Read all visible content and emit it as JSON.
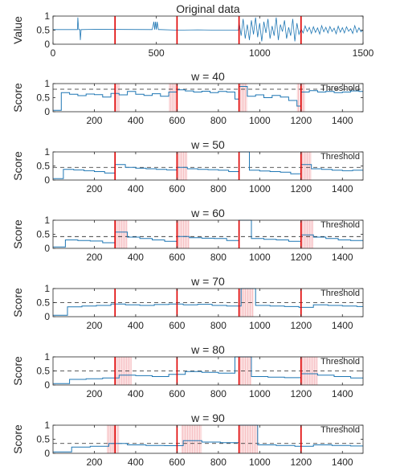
{
  "chart_data": [
    {
      "type": "line",
      "title": "Original data",
      "ylabel": "Value",
      "xlim": [
        0,
        1500
      ],
      "ylim": [
        0,
        1
      ],
      "xticks": [
        0,
        500,
        1000,
        1500
      ],
      "yticks": [
        0,
        0.5,
        1
      ],
      "ytick_labels": [
        "0",
        "0.5",
        "1"
      ],
      "series": [
        {
          "x": [
            0,
            100,
            118,
            120,
            124,
            130,
            132,
            136,
            140,
            200,
            480,
            488,
            492,
            496,
            500,
            504,
            510,
            514,
            520,
            600,
            700,
            800,
            897,
            900,
            910,
            920,
            930,
            940,
            950,
            960,
            970,
            980,
            990,
            1000,
            1010,
            1020,
            1030,
            1040,
            1050,
            1060,
            1070,
            1080,
            1090,
            1100,
            1110,
            1120,
            1130,
            1140,
            1150,
            1160,
            1170,
            1180,
            1190,
            1200,
            1210,
            1220,
            1230,
            1240,
            1250,
            1260,
            1270,
            1280,
            1290,
            1300,
            1310,
            1320,
            1330,
            1340,
            1350,
            1360,
            1370,
            1380,
            1390,
            1400,
            1410,
            1420,
            1430,
            1440,
            1450,
            1460,
            1470,
            1480,
            1490,
            1500
          ],
          "y": [
            0.52,
            0.52,
            0.52,
            0.95,
            0.52,
            0.52,
            0.15,
            0.52,
            0.52,
            0.53,
            0.52,
            0.8,
            0.52,
            0.8,
            0.52,
            0.8,
            0.52,
            0.52,
            0.52,
            0.5,
            0.51,
            0.5,
            0.5,
            0.8,
            0.3,
            0.9,
            0.2,
            0.7,
            0.15,
            0.85,
            0.35,
            0.95,
            0.25,
            0.75,
            0.1,
            0.8,
            0.4,
            0.9,
            0.2,
            0.65,
            0.3,
            0.95,
            0.15,
            0.7,
            0.45,
            0.85,
            0.2,
            0.6,
            0.3,
            0.9,
            0.1,
            0.75,
            0.35,
            0.55,
            0.4,
            0.65,
            0.45,
            0.6,
            0.38,
            0.62,
            0.42,
            0.58,
            0.36,
            0.66,
            0.44,
            0.6,
            0.4,
            0.63,
            0.45,
            0.57,
            0.37,
            0.64,
            0.43,
            0.59,
            0.4,
            0.62,
            0.46,
            0.55,
            0.38,
            0.66,
            0.42,
            0.58,
            0.44,
            0.5
          ]
        }
      ],
      "change_points": [
        300,
        600,
        900,
        1200
      ]
    },
    {
      "type": "line",
      "title": "w = 40",
      "ylabel": "Score",
      "xlim": [
        0,
        1500
      ],
      "ylim": [
        0,
        1
      ],
      "xticks": [
        200,
        400,
        600,
        800,
        1000,
        1200,
        1400
      ],
      "yticks": [
        0,
        0.5,
        1
      ],
      "ytick_labels": [
        "0",
        "0.5",
        "1"
      ],
      "threshold": 0.8,
      "threshold_label": "Threshold",
      "change_points": [
        300,
        600,
        900,
        1200
      ],
      "shaded": [
        [
          300,
          320
        ],
        [
          560,
          600
        ],
        [
          900,
          940
        ],
        [
          1180,
          1220
        ]
      ],
      "series": [
        {
          "x": [
            0,
            40,
            40,
            80,
            80,
            120,
            120,
            160,
            160,
            200,
            200,
            240,
            240,
            280,
            280,
            320,
            320,
            360,
            360,
            400,
            400,
            440,
            440,
            480,
            480,
            520,
            520,
            560,
            560,
            600,
            600,
            640,
            640,
            680,
            680,
            720,
            720,
            760,
            760,
            800,
            800,
            840,
            840,
            880,
            880,
            900,
            900,
            940,
            940,
            980,
            980,
            1020,
            1020,
            1060,
            1060,
            1100,
            1100,
            1140,
            1140,
            1180,
            1180,
            1200,
            1200,
            1240,
            1240,
            1280,
            1280,
            1320,
            1320,
            1360,
            1360,
            1400,
            1400,
            1440,
            1440,
            1480,
            1480,
            1500
          ],
          "y": [
            0.05,
            0.05,
            0.68,
            0.68,
            0.62,
            0.62,
            0.57,
            0.57,
            0.63,
            0.63,
            0.61,
            0.61,
            0.52,
            0.52,
            0.65,
            0.65,
            0.6,
            0.6,
            0.72,
            0.72,
            0.62,
            0.62,
            0.58,
            0.58,
            0.64,
            0.64,
            0.55,
            0.55,
            0.7,
            0.7,
            0.78,
            0.78,
            0.74,
            0.74,
            0.7,
            0.7,
            0.73,
            0.73,
            0.68,
            0.68,
            0.72,
            0.72,
            0.7,
            0.7,
            0.45,
            0.45,
            0.9,
            0.9,
            0.55,
            0.55,
            0.6,
            0.6,
            0.5,
            0.5,
            0.58,
            0.58,
            0.52,
            0.52,
            0.4,
            0.4,
            0.2,
            0.2,
            0.7,
            0.7,
            0.75,
            0.75,
            0.7,
            0.7,
            0.72,
            0.72,
            0.68,
            0.68,
            0.7,
            0.7,
            0.74,
            0.74,
            0.72,
            0.72
          ]
        }
      ]
    },
    {
      "type": "line",
      "title": "w = 50",
      "ylabel": "Score",
      "xlim": [
        0,
        1500
      ],
      "ylim": [
        0,
        1
      ],
      "xticks": [
        200,
        400,
        600,
        800,
        1000,
        1200,
        1400
      ],
      "yticks": [
        0,
        0.5,
        1
      ],
      "ytick_labels": [
        "0",
        "0.5",
        "1"
      ],
      "threshold": 0.45,
      "threshold_label": "Threshold",
      "change_points": [
        300,
        600,
        900,
        1200
      ],
      "shaded": [
        [
          600,
          650
        ],
        [
          1200,
          1250
        ]
      ],
      "series": [
        {
          "x": [
            0,
            50,
            50,
            100,
            100,
            150,
            150,
            200,
            200,
            250,
            250,
            300,
            300,
            350,
            350,
            400,
            400,
            450,
            450,
            500,
            500,
            550,
            550,
            600,
            600,
            650,
            650,
            700,
            700,
            750,
            750,
            800,
            800,
            850,
            850,
            900,
            900,
            950,
            950,
            1000,
            1000,
            1050,
            1050,
            1100,
            1100,
            1150,
            1150,
            1200,
            1200,
            1250,
            1250,
            1300,
            1300,
            1350,
            1350,
            1400,
            1400,
            1450,
            1450,
            1500
          ],
          "y": [
            0.05,
            0.05,
            0.38,
            0.38,
            0.36,
            0.36,
            0.33,
            0.33,
            0.3,
            0.3,
            0.25,
            0.25,
            0.55,
            0.55,
            0.45,
            0.45,
            0.42,
            0.42,
            0.4,
            0.4,
            0.38,
            0.38,
            0.36,
            0.36,
            0.45,
            0.45,
            0.4,
            0.4,
            0.38,
            0.38,
            0.37,
            0.37,
            0.35,
            0.35,
            0.3,
            0.3,
            1.0,
            1.0,
            0.35,
            0.35,
            0.32,
            0.32,
            0.3,
            0.3,
            0.28,
            0.28,
            0.22,
            0.22,
            0.55,
            0.55,
            0.4,
            0.4,
            0.38,
            0.38,
            0.35,
            0.35,
            0.33,
            0.33,
            0.35,
            0.35
          ]
        }
      ]
    },
    {
      "type": "line",
      "title": "w = 60",
      "ylabel": "Score",
      "xlim": [
        0,
        1500
      ],
      "ylim": [
        0,
        1
      ],
      "xticks": [
        200,
        400,
        600,
        800,
        1000,
        1200,
        1400
      ],
      "yticks": [
        0,
        0.5,
        1
      ],
      "ytick_labels": [
        "0",
        "0.5",
        "1"
      ],
      "threshold": 0.42,
      "threshold_label": "Threshold",
      "change_points": [
        300,
        600,
        900,
        1200
      ],
      "shaded": [
        [
          300,
          360
        ],
        [
          600,
          660
        ],
        [
          1200,
          1260
        ]
      ],
      "series": [
        {
          "x": [
            0,
            60,
            60,
            120,
            120,
            180,
            180,
            240,
            240,
            300,
            300,
            360,
            360,
            420,
            420,
            480,
            480,
            540,
            540,
            600,
            600,
            660,
            660,
            720,
            720,
            780,
            780,
            840,
            840,
            900,
            900,
            960,
            960,
            1020,
            1020,
            1080,
            1080,
            1140,
            1140,
            1200,
            1200,
            1260,
            1260,
            1320,
            1320,
            1380,
            1380,
            1440,
            1440,
            1500
          ],
          "y": [
            0.05,
            0.05,
            0.3,
            0.3,
            0.28,
            0.28,
            0.26,
            0.26,
            0.2,
            0.2,
            0.58,
            0.58,
            0.4,
            0.4,
            0.35,
            0.35,
            0.3,
            0.3,
            0.25,
            0.25,
            0.42,
            0.42,
            0.38,
            0.38,
            0.36,
            0.36,
            0.35,
            0.35,
            0.28,
            0.28,
            1.0,
            1.0,
            0.35,
            0.35,
            0.32,
            0.32,
            0.3,
            0.3,
            0.25,
            0.25,
            0.48,
            0.48,
            0.4,
            0.4,
            0.35,
            0.35,
            0.3,
            0.3,
            0.28,
            0.28
          ]
        }
      ]
    },
    {
      "type": "line",
      "title": "w = 70",
      "ylabel": "Score",
      "xlim": [
        0,
        1500
      ],
      "ylim": [
        0,
        1
      ],
      "xticks": [
        200,
        400,
        600,
        800,
        1000,
        1200,
        1400
      ],
      "yticks": [
        0,
        0.5,
        1
      ],
      "ytick_labels": [
        "0",
        "0.5",
        "1"
      ],
      "threshold": 0.5,
      "threshold_label": "Threshold",
      "change_points": [
        300,
        600,
        900,
        1200
      ],
      "shaded": [
        [
          900,
          970
        ]
      ],
      "series": [
        {
          "x": [
            0,
            70,
            70,
            140,
            140,
            210,
            210,
            280,
            280,
            350,
            350,
            420,
            420,
            490,
            490,
            560,
            560,
            630,
            630,
            700,
            700,
            770,
            770,
            840,
            840,
            910,
            910,
            980,
            980,
            1050,
            1050,
            1120,
            1120,
            1190,
            1190,
            1260,
            1260,
            1330,
            1330,
            1400,
            1400,
            1470,
            1470,
            1500
          ],
          "y": [
            0.05,
            0.05,
            0.35,
            0.35,
            0.38,
            0.38,
            0.4,
            0.4,
            0.45,
            0.45,
            0.42,
            0.42,
            0.4,
            0.4,
            0.43,
            0.43,
            0.45,
            0.45,
            0.42,
            0.42,
            0.44,
            0.44,
            0.4,
            0.4,
            0.38,
            0.38,
            1.0,
            1.0,
            0.4,
            0.4,
            0.38,
            0.38,
            0.36,
            0.36,
            0.33,
            0.33,
            0.42,
            0.42,
            0.4,
            0.4,
            0.38,
            0.38,
            0.36,
            0.36
          ]
        }
      ]
    },
    {
      "type": "line",
      "title": "w = 80",
      "ylabel": "Score",
      "xlim": [
        0,
        1500
      ],
      "ylim": [
        0,
        1
      ],
      "xticks": [
        200,
        400,
        600,
        800,
        1000,
        1200,
        1400
      ],
      "yticks": [
        0,
        0.5,
        1
      ],
      "ytick_labels": [
        "0",
        "0.5",
        "1"
      ],
      "threshold": 0.5,
      "threshold_label": "Threshold",
      "change_points": [
        300,
        600,
        900,
        1200
      ],
      "shaded": [
        [
          300,
          380
        ],
        [
          900,
          960
        ],
        [
          1200,
          1280
        ]
      ],
      "series": [
        {
          "x": [
            0,
            80,
            80,
            160,
            160,
            240,
            240,
            320,
            320,
            400,
            400,
            480,
            480,
            560,
            560,
            640,
            640,
            720,
            720,
            800,
            800,
            880,
            880,
            960,
            960,
            1040,
            1040,
            1120,
            1120,
            1200,
            1200,
            1280,
            1280,
            1360,
            1360,
            1440,
            1440,
            1500
          ],
          "y": [
            0.05,
            0.05,
            0.2,
            0.2,
            0.22,
            0.22,
            0.25,
            0.25,
            0.35,
            0.35,
            0.33,
            0.33,
            0.3,
            0.3,
            0.38,
            0.38,
            0.48,
            0.48,
            0.45,
            0.45,
            0.42,
            0.42,
            1.0,
            1.0,
            0.3,
            0.3,
            0.28,
            0.28,
            0.26,
            0.26,
            0.4,
            0.4,
            0.35,
            0.35,
            0.3,
            0.3,
            0.25,
            0.25
          ]
        }
      ]
    },
    {
      "type": "line",
      "title": "w = 90",
      "ylabel": "Score",
      "xlim": [
        0,
        1500
      ],
      "ylim": [
        0,
        1
      ],
      "xticks": [
        200,
        400,
        600,
        800,
        1000,
        1200,
        1400
      ],
      "yticks": [
        0,
        0.5,
        1
      ],
      "ytick_labels": [
        "0",
        "0.5",
        "1"
      ],
      "threshold": 0.35,
      "threshold_label": "Threshold",
      "change_points": [
        300,
        600,
        900,
        1200
      ],
      "shaded": [
        [
          260,
          320
        ],
        [
          620,
          720
        ],
        [
          900,
          990
        ]
      ],
      "series": [
        {
          "x": [
            0,
            90,
            90,
            180,
            180,
            270,
            270,
            360,
            360,
            450,
            450,
            540,
            540,
            630,
            630,
            720,
            720,
            810,
            810,
            900,
            900,
            990,
            990,
            1080,
            1080,
            1170,
            1170,
            1260,
            1260,
            1350,
            1350,
            1440,
            1440,
            1500
          ],
          "y": [
            0.05,
            0.05,
            0.22,
            0.22,
            0.25,
            0.25,
            0.35,
            0.35,
            0.3,
            0.3,
            0.28,
            0.28,
            0.27,
            0.27,
            0.45,
            0.45,
            0.4,
            0.4,
            0.38,
            0.38,
            1.0,
            1.0,
            0.3,
            0.3,
            0.28,
            0.28,
            0.25,
            0.25,
            0.3,
            0.3,
            0.28,
            0.28,
            0.26,
            0.26
          ]
        }
      ]
    }
  ]
}
